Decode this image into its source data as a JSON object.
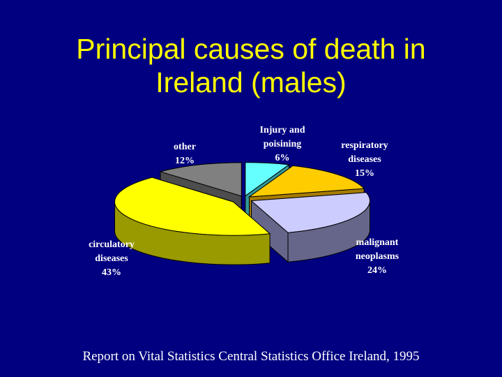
{
  "slide": {
    "title_line1": "Principal causes of death in",
    "title_line2": "Ireland (males)",
    "footer": "Report on Vital Statistics Central Statistics Office Ireland, 1995"
  },
  "colors": {
    "background": "#000080",
    "title": "#ffff00",
    "text": "#ffffff"
  },
  "chart_data": {
    "type": "pie",
    "style": "3d-exploded",
    "categories": [
      "Injury and poisining",
      "respiratory diseases",
      "malignant neoplasms",
      "circulatory diseases",
      "other"
    ],
    "values": [
      6,
      15,
      24,
      43,
      12
    ],
    "value_labels": [
      "6%",
      "15%",
      "24%",
      "43%",
      "12%"
    ],
    "label_lines": [
      [
        "Injury and",
        "poisining",
        "6%"
      ],
      [
        "respiratory",
        "diseases",
        "15%"
      ],
      [
        "malignant",
        "neoplasms",
        "24%"
      ],
      [
        "circulatory",
        "diseases",
        "43%"
      ],
      [
        "other",
        "12%"
      ]
    ],
    "colors": [
      "#66ffff",
      "#ffcc00",
      "#ccccff",
      "#ffff00",
      "#808080"
    ],
    "side_colors": [
      "#339999",
      "#a67c00",
      "#66668a",
      "#999900",
      "#4d4d4d"
    ],
    "legend": "none"
  }
}
